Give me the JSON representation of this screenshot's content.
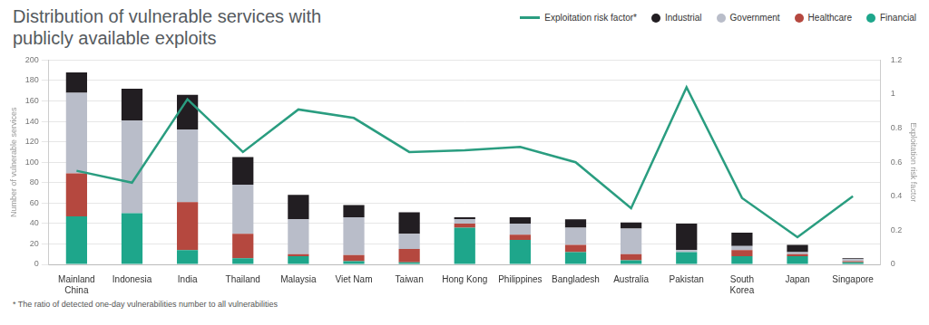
{
  "chart_data": {
    "type": "bar",
    "title": "Distribution of vulnerable services with publicly available exploits",
    "categories": [
      "Mainland China",
      "Indonesia",
      "India",
      "Thailand",
      "Malaysia",
      "Viet Nam",
      "Taiwan",
      "Hong Kong",
      "Philippines",
      "Bangladesh",
      "Australia",
      "Pakistan",
      "South Korea",
      "Japan",
      "Singapore"
    ],
    "series": [
      {
        "name": "Exploitation risk factor*",
        "type": "line",
        "axis": "y2",
        "color": "#2a9d80",
        "values": [
          0.55,
          0.48,
          0.97,
          0.66,
          0.91,
          0.86,
          0.66,
          0.67,
          0.69,
          0.6,
          0.33,
          1.04,
          0.39,
          0.16,
          0.4
        ]
      },
      {
        "name": "Industrial",
        "color": "#221e22",
        "values": [
          20,
          31,
          34,
          27,
          24,
          12,
          21,
          2,
          6,
          8,
          6,
          26,
          13,
          7,
          1
        ]
      },
      {
        "name": "Government",
        "color": "#b9bdc9",
        "values": [
          79,
          91,
          71,
          48,
          34,
          37,
          15,
          4,
          11,
          17,
          25,
          2,
          4,
          2,
          2
        ]
      },
      {
        "name": "Healthcare",
        "color": "#b5483f",
        "values": [
          42,
          0,
          47,
          24,
          2,
          6,
          13,
          4,
          5,
          7,
          6,
          0,
          6,
          2,
          1
        ]
      },
      {
        "name": "Financial",
        "color": "#1ea68b",
        "values": [
          47,
          50,
          14,
          6,
          8,
          3,
          2,
          36,
          24,
          12,
          4,
          12,
          8,
          8,
          2
        ]
      }
    ],
    "stacked": true,
    "ylim": [
      0,
      200
    ],
    "yticks": [
      0,
      20,
      40,
      60,
      80,
      100,
      120,
      140,
      160,
      180,
      200
    ],
    "y2lim": [
      0,
      1.2
    ],
    "y2ticks": [
      0,
      0.2,
      0.4,
      0.6,
      0.8,
      1,
      1.2
    ],
    "ylabel": "Number of vulnerable services",
    "y2label": "Exploitation risk factor",
    "annotations": [
      "* The ratio of detected one-day vulnerabilities number to all vulnerabilities"
    ],
    "grid": true,
    "legend": "top-right"
  }
}
